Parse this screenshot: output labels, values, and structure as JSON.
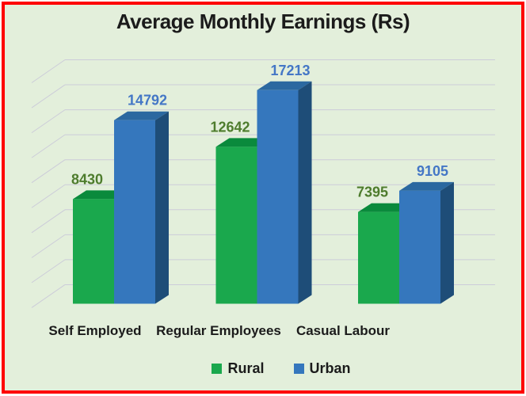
{
  "frame": {
    "border_color": "#fe0000",
    "background": "#e3efdb"
  },
  "chart_data": {
    "type": "bar",
    "variant": "3d-clustered-column",
    "title": "Average Monthly Earnings (Rs)",
    "categories": [
      "Self Employed",
      "Regular Employees",
      "Casual Labour"
    ],
    "series": [
      {
        "name": "Rural",
        "color": "#1aa84d",
        "color_top": "#0a8a3c",
        "color_side": "#0e7a38",
        "label_color": "#4e7c2d",
        "values": [
          8430,
          12642,
          7395
        ]
      },
      {
        "name": "Urban",
        "color": "#3577bd",
        "color_top": "#2b68a0",
        "color_side": "#1e4d78",
        "label_color": "#4477c6",
        "values": [
          14792,
          17213,
          9105
        ]
      }
    ],
    "xlabel": "",
    "ylabel": "",
    "ylim": [
      0,
      20000
    ],
    "gridlines": {
      "visible": true,
      "step": 2000,
      "color": "#ccccd9"
    },
    "legend_position": "bottom",
    "data_labels": true
  },
  "legend": {
    "items": [
      {
        "label": "Rural",
        "color": "#1aa84d"
      },
      {
        "label": "Urban",
        "color": "#3577bd"
      }
    ]
  }
}
